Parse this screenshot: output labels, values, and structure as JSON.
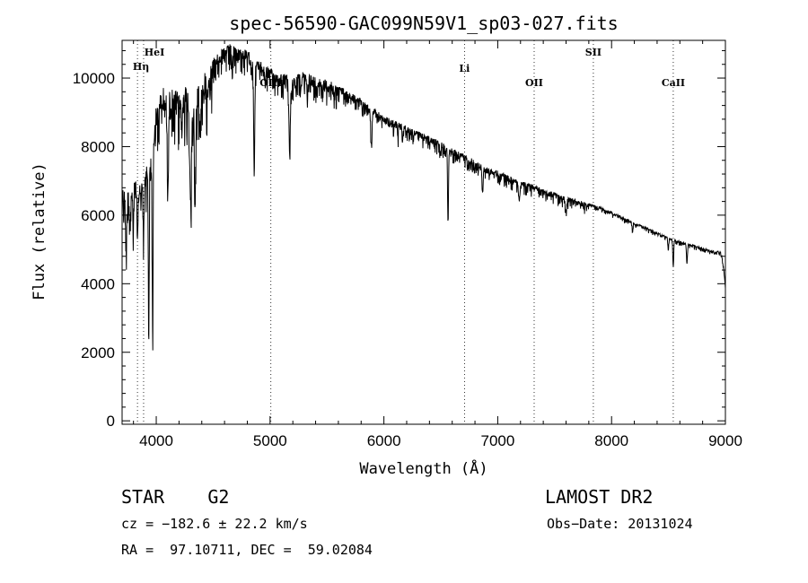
{
  "chart_data": {
    "type": "line",
    "title": "spec-56590-GAC099N59V1_sp03-027.fits",
    "xlabel": "Wavelength (Å)",
    "ylabel": "Flux (relative)",
    "xlim": [
      3700,
      9000
    ],
    "ylim": [
      -100,
      11100
    ],
    "x_ticks": [
      4000,
      5000,
      6000,
      7000,
      8000,
      9000
    ],
    "x_tick_labels": [
      "4000",
      "5000",
      "6000",
      "7000",
      "8000",
      "9000"
    ],
    "y_ticks": [
      0,
      2000,
      4000,
      6000,
      8000,
      10000
    ],
    "y_tick_labels": [
      "0",
      "2000",
      "4000",
      "6000",
      "8000",
      "10000"
    ],
    "spectral_lines": [
      {
        "label": "HeI",
        "x": 3889
      },
      {
        "label": "Hη",
        "x": 3835
      },
      {
        "label": "OIII",
        "x": 5007
      },
      {
        "label": "Li",
        "x": 6708
      },
      {
        "label": "OII",
        "x": 7320
      },
      {
        "label": "SII",
        "x": 7840
      },
      {
        "label": "CaII",
        "x": 8542
      }
    ],
    "continuum": [
      [
        3700,
        6800
      ],
      [
        3750,
        7000
      ],
      [
        3800,
        7200
      ],
      [
        3850,
        7000
      ],
      [
        3900,
        7300
      ],
      [
        3950,
        7900
      ],
      [
        4000,
        9200
      ],
      [
        4050,
        9800
      ],
      [
        4100,
        9600
      ],
      [
        4150,
        9700
      ],
      [
        4200,
        9600
      ],
      [
        4250,
        9900
      ],
      [
        4300,
        9600
      ],
      [
        4350,
        9800
      ],
      [
        4400,
        10000
      ],
      [
        4450,
        10300
      ],
      [
        4500,
        10600
      ],
      [
        4550,
        10800
      ],
      [
        4600,
        10900
      ],
      [
        4650,
        11000
      ],
      [
        4700,
        10900
      ],
      [
        4750,
        10900
      ],
      [
        4800,
        10800
      ],
      [
        4850,
        10700
      ],
      [
        4900,
        10500
      ],
      [
        4950,
        10400
      ],
      [
        5000,
        10300
      ],
      [
        5050,
        10200
      ],
      [
        5100,
        10150
      ],
      [
        5150,
        10100
      ],
      [
        5200,
        10050
      ],
      [
        5300,
        10200
      ],
      [
        5400,
        10050
      ],
      [
        5500,
        9950
      ],
      [
        5600,
        9800
      ],
      [
        5700,
        9600
      ],
      [
        5800,
        9400
      ],
      [
        5900,
        9150
      ],
      [
        6000,
        8900
      ],
      [
        6100,
        8750
      ],
      [
        6200,
        8600
      ],
      [
        6300,
        8450
      ],
      [
        6400,
        8300
      ],
      [
        6500,
        8150
      ],
      [
        6600,
        7950
      ],
      [
        6700,
        7800
      ],
      [
        6800,
        7600
      ],
      [
        6900,
        7400
      ],
      [
        7000,
        7300
      ],
      [
        7100,
        7150
      ],
      [
        7200,
        7000
      ],
      [
        7300,
        6900
      ],
      [
        7400,
        6800
      ],
      [
        7500,
        6650
      ],
      [
        7600,
        6550
      ],
      [
        7700,
        6450
      ],
      [
        7800,
        6350
      ],
      [
        7900,
        6250
      ],
      [
        8000,
        6100
      ],
      [
        8100,
        5950
      ],
      [
        8200,
        5800
      ],
      [
        8300,
        5650
      ],
      [
        8400,
        5500
      ],
      [
        8500,
        5350
      ],
      [
        8600,
        5250
      ],
      [
        8700,
        5150
      ],
      [
        8800,
        5050
      ],
      [
        8900,
        4950
      ],
      [
        8960,
        4950
      ],
      [
        8985,
        4500
      ],
      [
        9000,
        3900
      ]
    ],
    "absorption_features": [
      [
        3735,
        5400,
        12
      ],
      [
        3770,
        6000,
        10
      ],
      [
        3798,
        5900,
        10
      ],
      [
        3835,
        5500,
        10
      ],
      [
        3889,
        5800,
        10
      ],
      [
        3934,
        2700,
        8
      ],
      [
        3968,
        3000,
        8
      ],
      [
        4101,
        7200,
        10
      ],
      [
        4227,
        8800,
        8
      ],
      [
        4303,
        6900,
        14
      ],
      [
        4340,
        6300,
        10
      ],
      [
        4383,
        8800,
        8
      ],
      [
        4668,
        10400,
        8
      ],
      [
        4861,
        7400,
        10
      ],
      [
        4957,
        10000,
        8
      ],
      [
        5172,
        7900,
        12
      ],
      [
        5270,
        9700,
        8
      ],
      [
        5328,
        9700,
        8
      ],
      [
        5890,
        8200,
        12
      ],
      [
        6122,
        8300,
        6
      ],
      [
        6163,
        8200,
        6
      ],
      [
        6495,
        7800,
        6
      ],
      [
        6563,
        6000,
        8
      ],
      [
        6867,
        6800,
        10
      ],
      [
        7190,
        6500,
        10
      ],
      [
        7600,
        6200,
        12
      ],
      [
        8184,
        5500,
        6
      ],
      [
        8498,
        5000,
        6
      ],
      [
        8542,
        4500,
        8
      ],
      [
        8662,
        4600,
        8
      ]
    ]
  },
  "info": {
    "object_line": "STAR    G2",
    "survey": "LAMOST DR2",
    "cz": "cz = −182.6 ± 22.2 km/s",
    "obs_date": "Obs−Date: 20131024",
    "coords": "RA =  97.10711, DEC =  59.02084"
  }
}
